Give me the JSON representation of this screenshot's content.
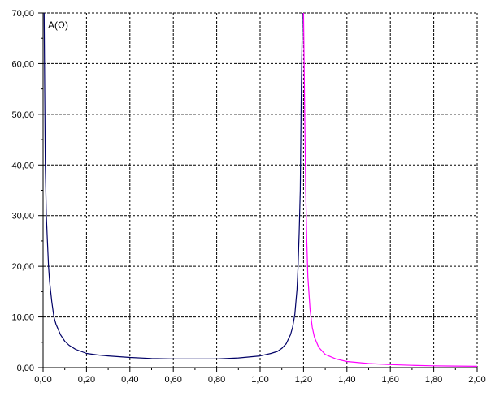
{
  "chart_data": {
    "type": "line",
    "title": "",
    "xlabel": "",
    "ylabel": "A(Ω)",
    "xlim": [
      0,
      2
    ],
    "ylim": [
      0,
      70
    ],
    "x_ticks": [
      "0,00",
      "0,20",
      "0,40",
      "0,60",
      "0,80",
      "1,00",
      "1,20",
      "1,40",
      "1,60",
      "1,80",
      "2,00"
    ],
    "y_ticks": [
      "0,00",
      "10,00",
      "20,00",
      "30,00",
      "40,00",
      "50,00",
      "60,00",
      "70,00"
    ],
    "grid": true,
    "series": [
      {
        "color": "#000066",
        "x": [
          0.005,
          0.01,
          0.015,
          0.02,
          0.025,
          0.03,
          0.04,
          0.05,
          0.06,
          0.08,
          0.1,
          0.12,
          0.15,
          0.2,
          0.25,
          0.3,
          0.4,
          0.5,
          0.6,
          0.7,
          0.8,
          0.9,
          1.0,
          1.05,
          1.08,
          1.1,
          1.12,
          1.14,
          1.15,
          1.16,
          1.17,
          1.175,
          1.18,
          1.185,
          1.19,
          1.195
        ],
        "y": [
          70,
          40,
          30,
          25,
          20,
          17,
          13,
          10,
          8.5,
          6.5,
          5.2,
          4.4,
          3.6,
          2.8,
          2.5,
          2.3,
          2.0,
          1.8,
          1.7,
          1.7,
          1.7,
          1.9,
          2.3,
          2.8,
          3.2,
          3.8,
          4.7,
          6.5,
          8.0,
          10.5,
          15.5,
          20,
          27,
          35,
          55,
          70
        ]
      },
      {
        "color": "#ff00ff",
        "x": [
          1.2,
          1.205,
          1.21,
          1.215,
          1.22,
          1.23,
          1.24,
          1.25,
          1.27,
          1.3,
          1.35,
          1.4,
          1.5,
          1.6,
          1.7,
          1.8,
          1.9,
          2.0
        ],
        "y": [
          70,
          52,
          35,
          25,
          18,
          11.5,
          8.0,
          6.0,
          4.0,
          2.6,
          1.7,
          1.2,
          0.8,
          0.6,
          0.45,
          0.35,
          0.3,
          0.25
        ]
      }
    ]
  }
}
